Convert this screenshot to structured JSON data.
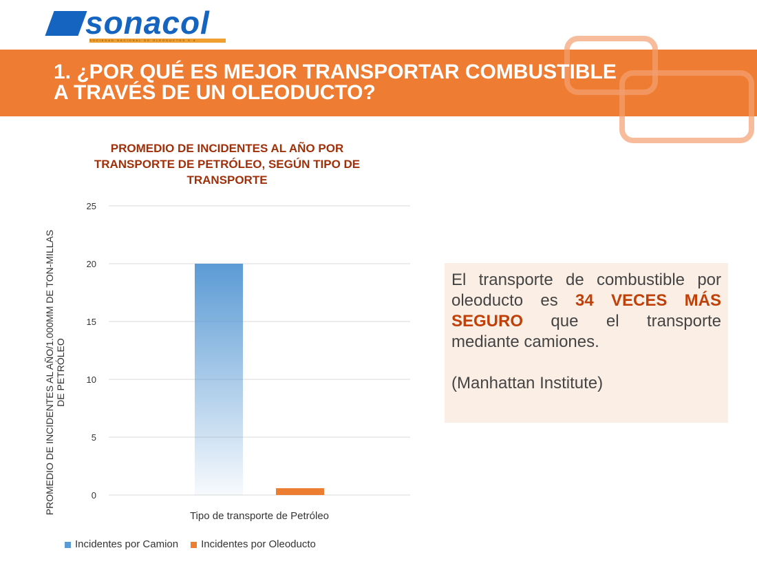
{
  "logo": {
    "text": "sonacol",
    "tagline": "SOCIEDAD NACIONAL DE OLEODUCTOS S.A."
  },
  "header": {
    "title_line1": "1. ¿POR QUÉ ES MEJOR TRANSPORTAR COMBUSTIBLE",
    "title_line2": "A TRAVÉS DE UN OLEODUCTO?"
  },
  "callout": {
    "text1": "El transporte de combustible por oleoducto es ",
    "highlight": "34 VECES MÁS SEGURO",
    "text2": " que el transporte mediante camiones.",
    "source": "(Manhattan Institute)"
  },
  "chart_data": {
    "type": "bar",
    "title": "PROMEDIO DE INCIDENTES AL AÑO POR TRANSPORTE DE PETRÓLEO, SEGÚN TIPO DE TRANSPORTE",
    "xlabel": "Tipo de transporte de Petróleo",
    "ylabel": "PROMEDIO DE INCIDENTES AL AÑO/1.000MM DE TON-MILLAS DE PETRÓLEO",
    "categories": [
      "Tipo de transporte de Petróleo"
    ],
    "series": [
      {
        "name": "Incidentes por Camion",
        "values": [
          20
        ],
        "color": "#5b9bd5"
      },
      {
        "name": "Incidentes por Oleoducto",
        "values": [
          0.59
        ],
        "color": "#ed7d31"
      }
    ],
    "ylim": [
      0,
      25
    ],
    "yticks": [
      "0",
      "5",
      "10",
      "15",
      "20",
      "25"
    ],
    "grid": true,
    "legend": "bottom"
  }
}
